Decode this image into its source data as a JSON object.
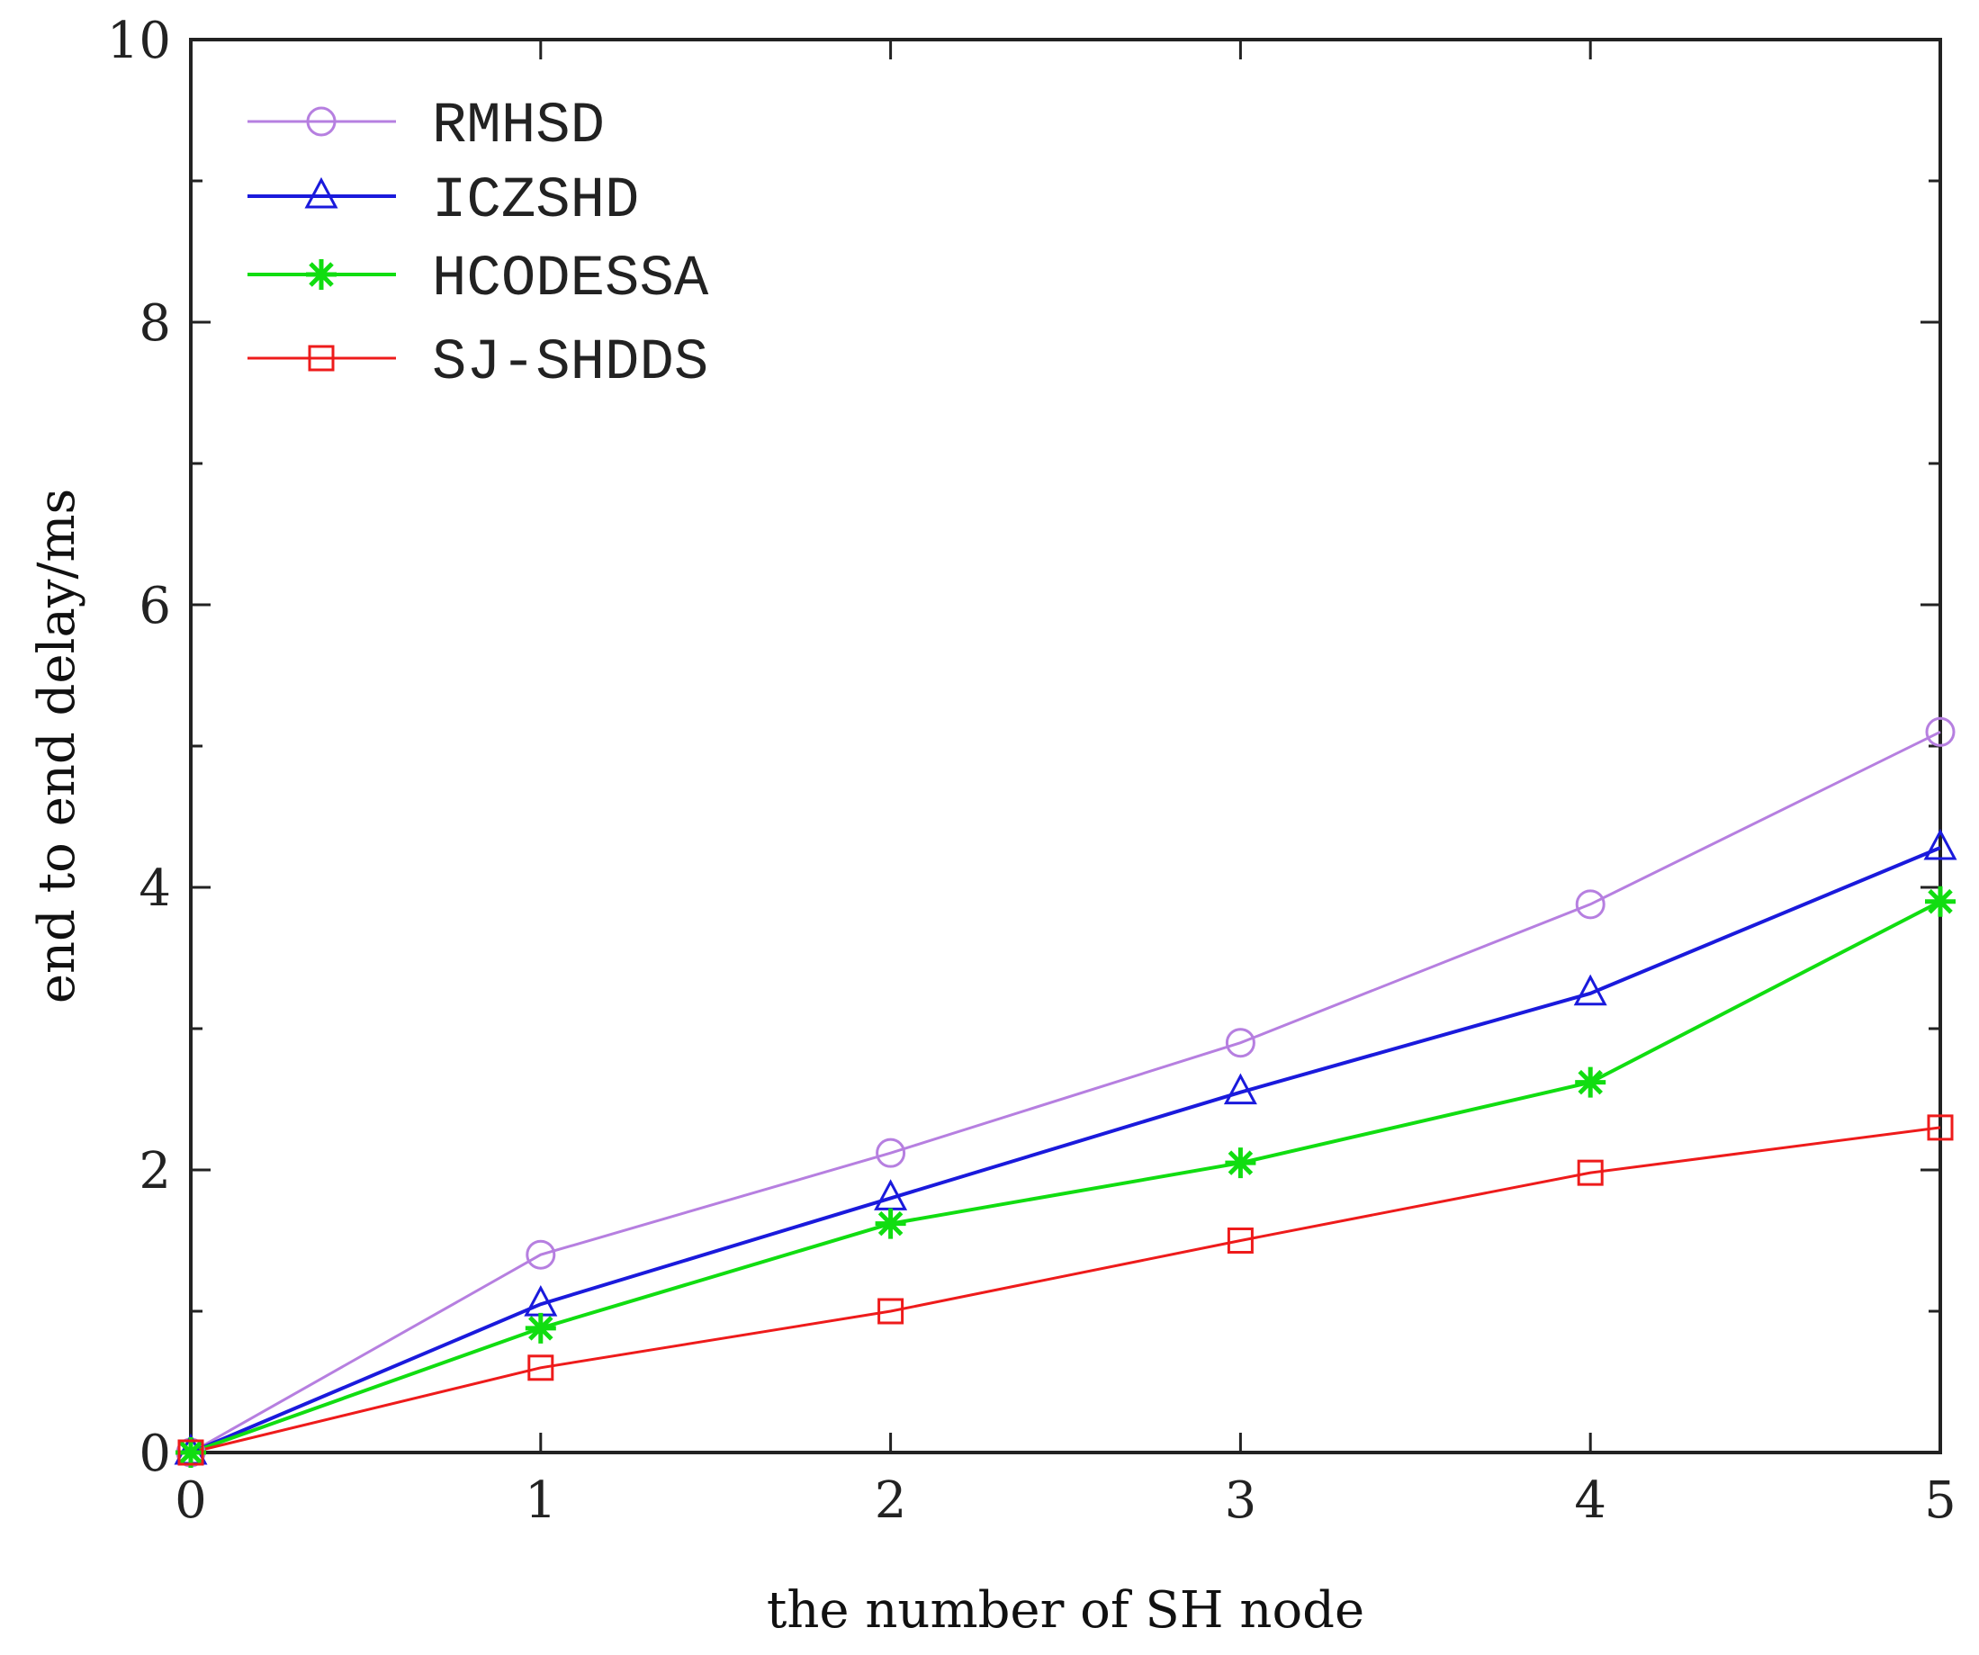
{
  "chart_data": {
    "type": "line",
    "title": "",
    "xlabel": "the number of SH node",
    "ylabel": "end to end delay/ms",
    "xlim": [
      0,
      5
    ],
    "ylim": [
      0,
      10
    ],
    "x": [
      0,
      1,
      2,
      3,
      4,
      5
    ],
    "x_ticks": [
      0,
      1,
      2,
      3,
      4,
      5
    ],
    "y_ticks": [
      0,
      2,
      4,
      6,
      8,
      10
    ],
    "y_minor_ticks": [
      1,
      3,
      5,
      7,
      9
    ],
    "grid": false,
    "legend_position": "top-left",
    "series": [
      {
        "name": "RMHSD",
        "color": "#b67fe0",
        "marker": "circle",
        "values": [
          0,
          1.4,
          2.12,
          2.9,
          3.88,
          5.1
        ]
      },
      {
        "name": "ICZSHD",
        "color": "#1a1adc",
        "marker": "triangle",
        "values": [
          0,
          1.05,
          1.8,
          2.55,
          3.25,
          4.28
        ]
      },
      {
        "name": "HCODESSA",
        "color": "#11dd11",
        "marker": "asterisk",
        "values": [
          0,
          0.88,
          1.62,
          2.05,
          2.62,
          3.9
        ]
      },
      {
        "name": "SJ-SHDDS",
        "color": "#ee1b1b",
        "marker": "square",
        "values": [
          0,
          0.6,
          1.0,
          1.5,
          1.98,
          2.3
        ]
      }
    ]
  }
}
